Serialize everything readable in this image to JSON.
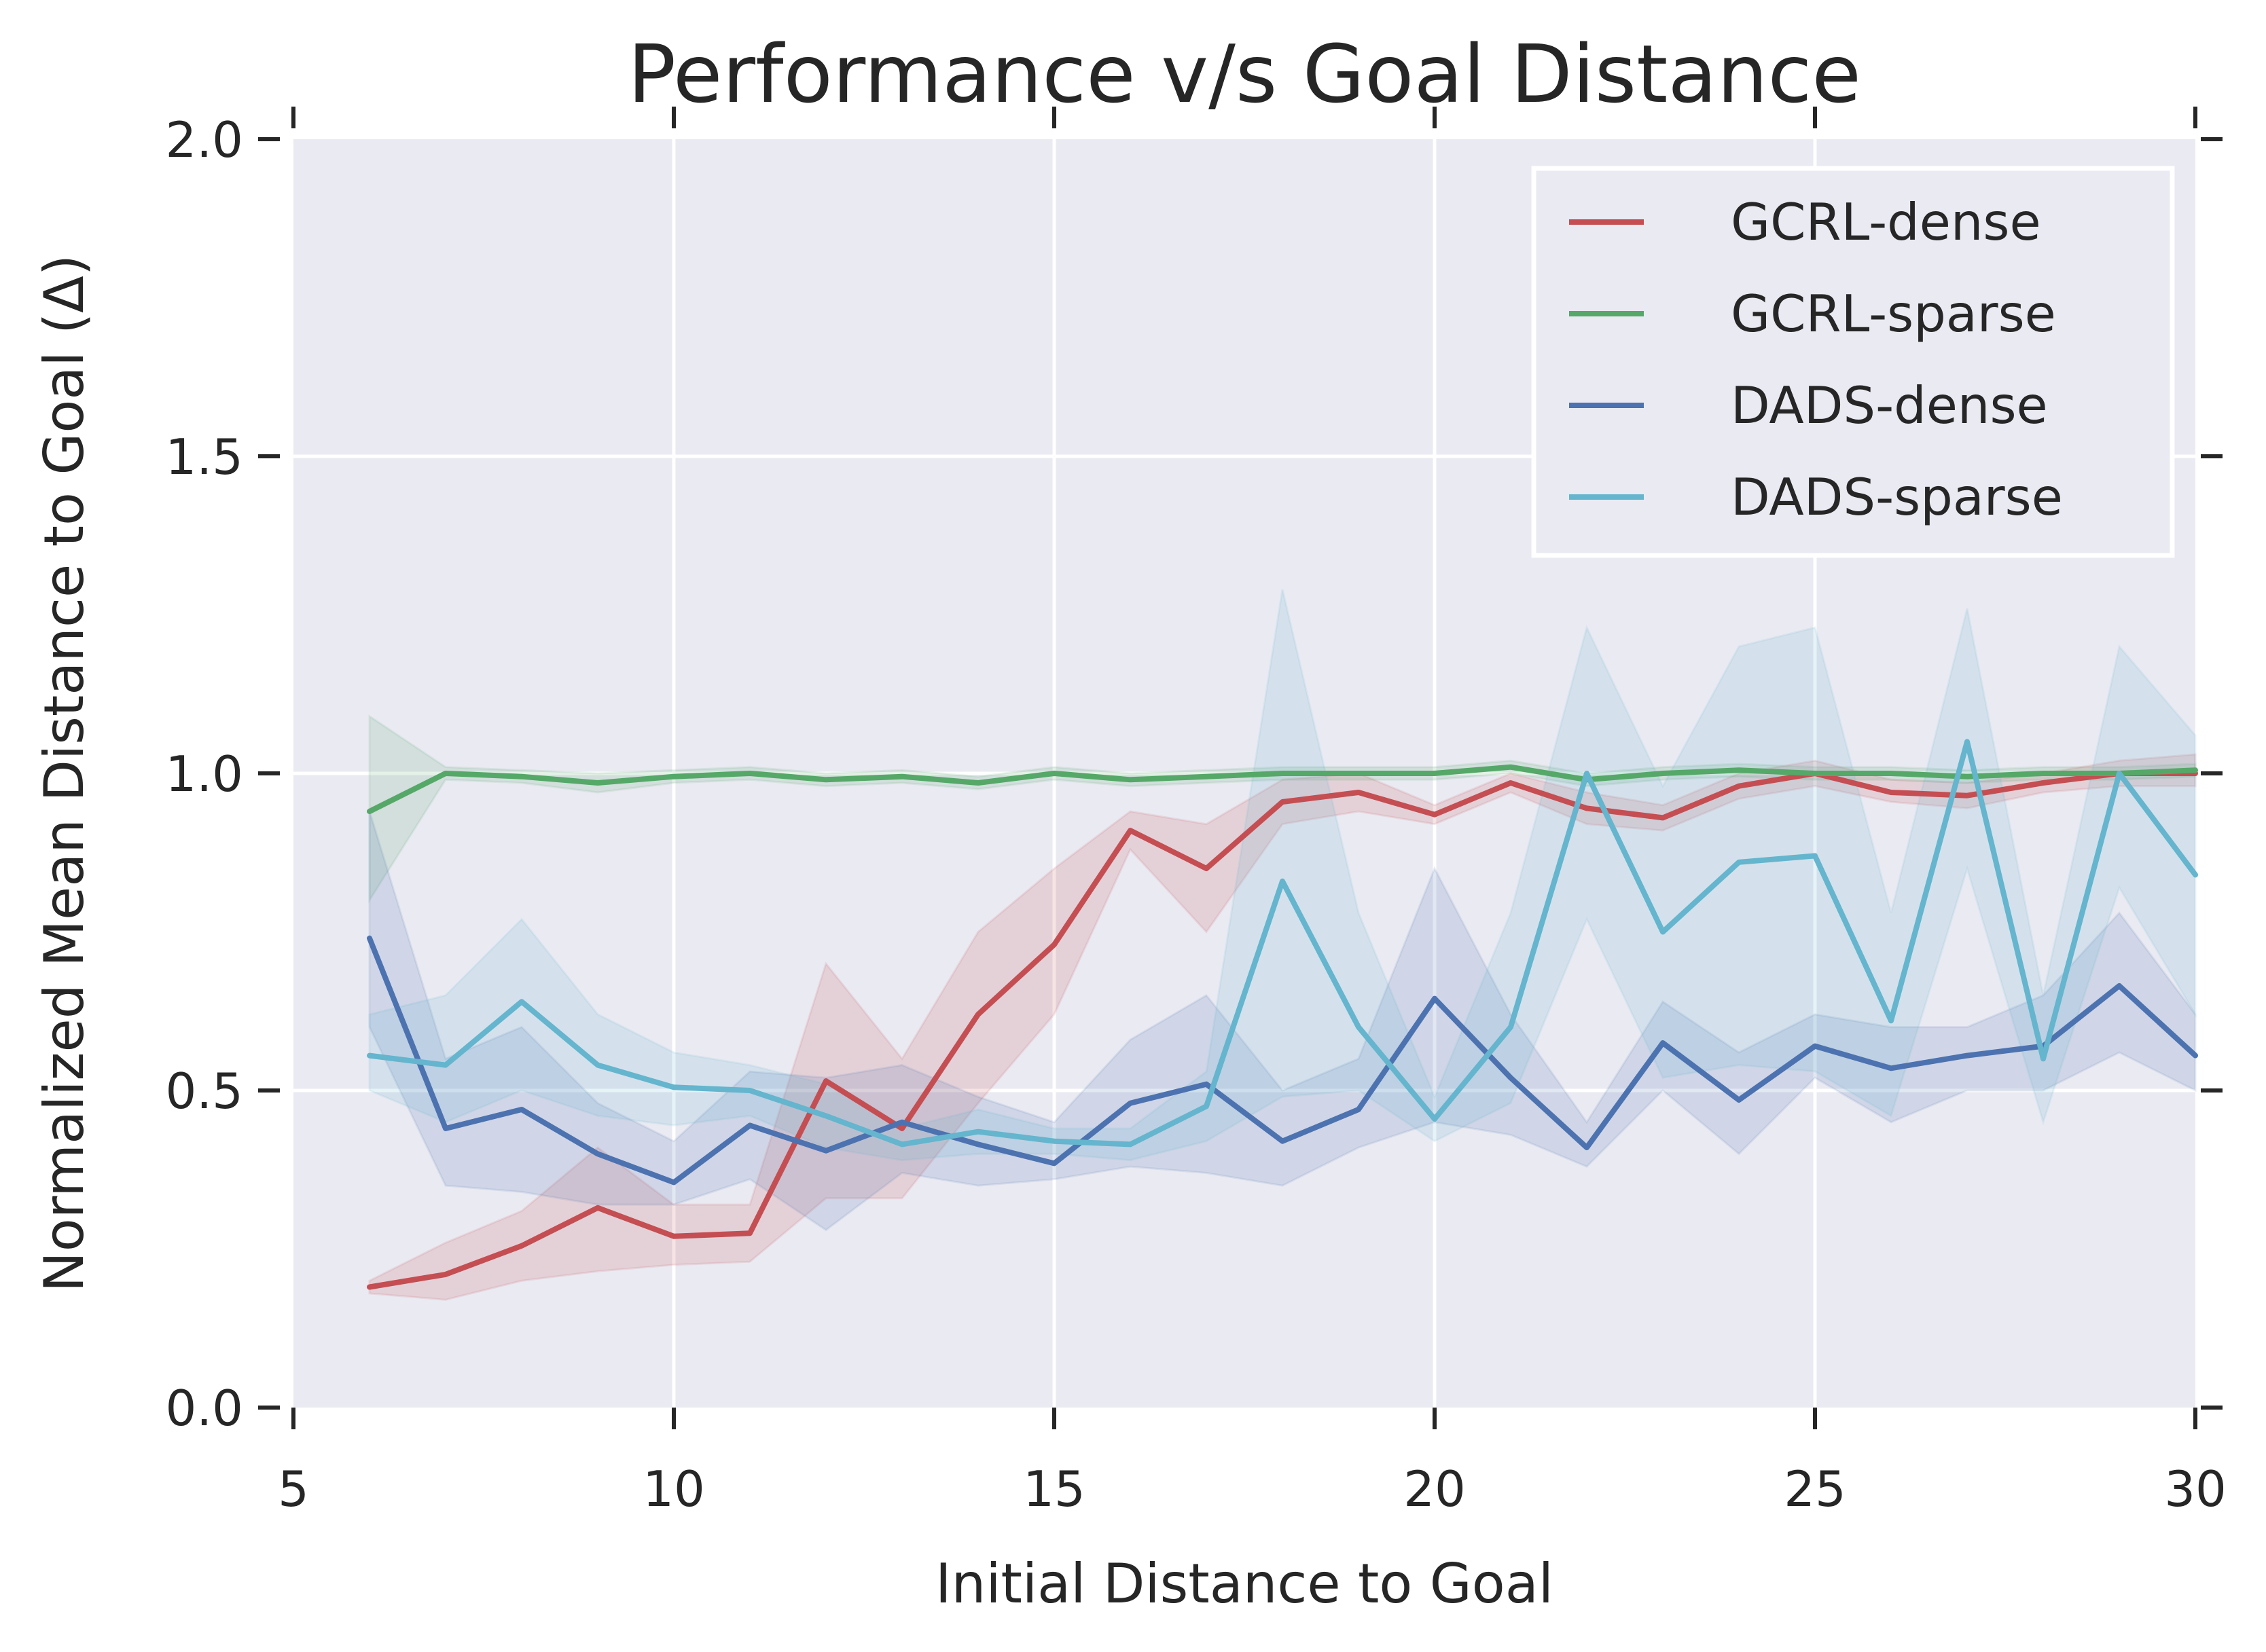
{
  "chart_data": {
    "type": "line",
    "title": "Performance v/s Goal Distance",
    "xlabel": "Initial Distance to Goal",
    "ylabel": "Normalized Mean Distance to Goal (Δ)",
    "xlim": [
      5,
      30
    ],
    "ylim": [
      0,
      2
    ],
    "xticks": [
      5,
      10,
      15,
      20,
      25,
      30
    ],
    "xtick_labels": [
      "5",
      "10",
      "15",
      "20",
      "25",
      "30"
    ],
    "yticks": [
      0,
      0.5,
      1,
      1.5,
      2
    ],
    "ytick_labels": [
      "0.0",
      "0.5",
      "1.0",
      "1.5",
      "2.0"
    ],
    "grid": true,
    "legend_position": "top-right",
    "x": [
      6,
      7,
      8,
      9,
      10,
      11,
      12,
      13,
      14,
      15,
      16,
      17,
      18,
      19,
      20,
      21,
      22,
      23,
      24,
      25,
      26,
      27,
      28,
      29,
      30
    ],
    "series": [
      {
        "name": "GCRL-dense",
        "color": "#c44e52",
        "values": [
          0.19,
          0.21,
          0.255,
          0.315,
          0.27,
          0.275,
          0.515,
          0.44,
          0.62,
          0.73,
          0.91,
          0.85,
          0.955,
          0.97,
          0.935,
          0.985,
          0.945,
          0.93,
          0.98,
          1.0,
          0.97,
          0.965,
          0.985,
          1.0,
          1.0
        ],
        "lower": [
          0.18,
          0.17,
          0.2,
          0.215,
          0.225,
          0.23,
          0.33,
          0.33,
          0.48,
          0.62,
          0.88,
          0.75,
          0.92,
          0.94,
          0.92,
          0.97,
          0.92,
          0.91,
          0.96,
          0.98,
          0.955,
          0.945,
          0.97,
          0.98,
          0.98
        ],
        "upper": [
          0.2,
          0.26,
          0.31,
          0.41,
          0.32,
          0.32,
          0.7,
          0.55,
          0.75,
          0.85,
          0.94,
          0.92,
          0.99,
          1.0,
          0.95,
          1.0,
          0.97,
          0.95,
          1.0,
          1.02,
          0.99,
          0.985,
          1.0,
          1.02,
          1.03
        ]
      },
      {
        "name": "GCRL-sparse",
        "color": "#55a868",
        "values": [
          0.94,
          1.0,
          0.995,
          0.985,
          0.995,
          1.0,
          0.99,
          0.995,
          0.985,
          1.0,
          0.99,
          0.995,
          1.0,
          1.0,
          1.0,
          1.01,
          0.99,
          1.0,
          1.005,
          1.0,
          1.0,
          0.995,
          1.0,
          1.0,
          1.005
        ],
        "lower": [
          0.8,
          0.99,
          0.985,
          0.97,
          0.985,
          0.99,
          0.98,
          0.985,
          0.975,
          0.99,
          0.98,
          0.985,
          0.99,
          0.99,
          0.99,
          1.0,
          0.98,
          0.99,
          0.995,
          0.99,
          0.99,
          0.985,
          0.99,
          0.99,
          0.995
        ],
        "upper": [
          1.09,
          1.01,
          1.005,
          1.0,
          1.005,
          1.01,
          1.0,
          1.005,
          0.995,
          1.01,
          1.0,
          1.005,
          1.01,
          1.01,
          1.01,
          1.02,
          1.0,
          1.01,
          1.015,
          1.01,
          1.01,
          1.005,
          1.01,
          1.01,
          1.015
        ]
      },
      {
        "name": "DADS-dense",
        "color": "#4c72b0",
        "values": [
          0.74,
          0.44,
          0.47,
          0.4,
          0.355,
          0.445,
          0.405,
          0.45,
          0.415,
          0.385,
          0.48,
          0.51,
          0.42,
          0.47,
          0.645,
          0.52,
          0.41,
          0.575,
          0.485,
          0.57,
          0.535,
          0.555,
          0.57,
          0.665,
          0.555
        ],
        "lower": [
          0.6,
          0.35,
          0.34,
          0.32,
          0.32,
          0.36,
          0.28,
          0.37,
          0.35,
          0.36,
          0.38,
          0.37,
          0.35,
          0.41,
          0.45,
          0.43,
          0.38,
          0.5,
          0.4,
          0.52,
          0.45,
          0.5,
          0.5,
          0.56,
          0.5
        ],
        "upper": [
          0.94,
          0.55,
          0.6,
          0.48,
          0.42,
          0.53,
          0.52,
          0.54,
          0.49,
          0.45,
          0.58,
          0.65,
          0.5,
          0.55,
          0.85,
          0.62,
          0.45,
          0.64,
          0.56,
          0.62,
          0.6,
          0.6,
          0.65,
          0.78,
          0.62
        ]
      },
      {
        "name": "DADS-sparse",
        "color": "#64b5cd",
        "values": [
          0.555,
          0.54,
          0.64,
          0.54,
          0.505,
          0.5,
          0.46,
          0.415,
          0.435,
          0.42,
          0.415,
          0.475,
          0.83,
          0.6,
          0.455,
          0.6,
          1.0,
          0.75,
          0.86,
          0.87,
          0.61,
          1.05,
          0.55,
          1.0,
          0.84
        ],
        "lower": [
          0.5,
          0.45,
          0.5,
          0.46,
          0.445,
          0.46,
          0.41,
          0.39,
          0.4,
          0.4,
          0.39,
          0.42,
          0.49,
          0.5,
          0.42,
          0.48,
          0.77,
          0.52,
          0.54,
          0.53,
          0.46,
          0.85,
          0.45,
          0.82,
          0.62
        ],
        "upper": [
          0.62,
          0.65,
          0.77,
          0.62,
          0.56,
          0.54,
          0.51,
          0.44,
          0.47,
          0.44,
          0.44,
          0.53,
          1.29,
          0.78,
          0.49,
          0.78,
          1.23,
          0.98,
          1.2,
          1.23,
          0.78,
          1.26,
          0.65,
          1.2,
          1.06
        ]
      }
    ]
  }
}
